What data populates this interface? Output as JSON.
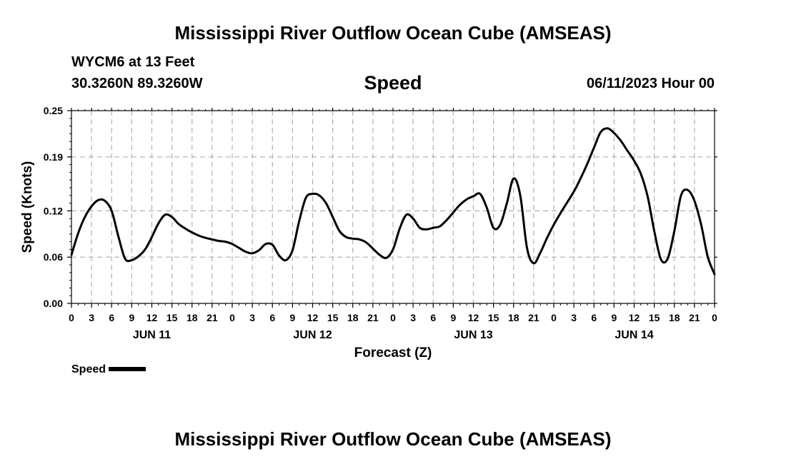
{
  "page_title": "Mississippi River Outflow Ocean Cube (AMSEAS)",
  "footer_title": "Mississippi River Outflow Ocean Cube (AMSEAS)",
  "station": "WYCM6 at 13 Feet",
  "coordinates": "30.3260N  89.3260W",
  "variable": "Speed",
  "date": "06/11/2023 Hour 00",
  "legend": {
    "label": "Speed",
    "color": "#000000"
  },
  "chart_data": {
    "type": "line",
    "title": "Speed",
    "xlabel": "Forecast (Z)",
    "ylabel": "Speed (Knots)",
    "xlim": [
      0,
      96
    ],
    "ylim": [
      0,
      0.25
    ],
    "y_ticks": [
      0.0,
      0.06,
      0.12,
      0.19,
      0.25
    ],
    "y_tick_labels": [
      "0.00",
      "0.06",
      "0.12",
      "0.19",
      "0.25"
    ],
    "x_ticks": [
      0,
      3,
      6,
      9,
      12,
      15,
      18,
      21,
      24,
      27,
      30,
      33,
      36,
      39,
      42,
      45,
      48,
      51,
      54,
      57,
      60,
      63,
      66,
      69,
      72,
      75,
      78,
      81,
      84,
      87,
      90,
      93,
      96
    ],
    "x_tick_labels": [
      "0",
      "3",
      "6",
      "9",
      "12",
      "15",
      "18",
      "21",
      "0",
      "3",
      "6",
      "9",
      "12",
      "15",
      "18",
      "21",
      "0",
      "3",
      "6",
      "9",
      "12",
      "15",
      "18",
      "21",
      "0",
      "3",
      "6",
      "9",
      "12",
      "15",
      "18",
      "21",
      "0"
    ],
    "day_labels": [
      {
        "label": "JUN 11",
        "x": 12
      },
      {
        "label": "JUN 12",
        "x": 36
      },
      {
        "label": "JUN 13",
        "x": 60
      },
      {
        "label": "JUN 14",
        "x": 84
      }
    ],
    "grid": true,
    "series": [
      {
        "name": "Speed",
        "color": "#000000",
        "x": [
          0,
          1,
          2,
          3,
          4,
          5,
          6,
          7,
          8,
          9,
          10,
          11,
          12,
          13,
          14,
          15,
          16,
          17,
          18,
          19,
          20,
          21,
          22,
          23,
          24,
          25,
          26,
          27,
          28,
          29,
          30,
          31,
          32,
          33,
          34,
          35,
          36,
          37,
          38,
          39,
          40,
          41,
          42,
          43,
          44,
          45,
          46,
          47,
          48,
          49,
          50,
          51,
          52,
          53,
          54,
          55,
          56,
          57,
          58,
          59,
          60,
          61,
          62,
          63,
          64,
          65,
          66,
          67,
          68,
          69,
          70,
          71,
          72,
          73,
          74,
          75,
          76,
          77,
          78,
          79,
          80,
          81,
          82,
          83,
          84,
          85,
          86,
          87,
          88,
          89,
          90,
          91,
          92,
          93,
          94,
          95,
          96
        ],
        "values": [
          0.063,
          0.091,
          0.112,
          0.126,
          0.134,
          0.133,
          0.12,
          0.087,
          0.058,
          0.056,
          0.061,
          0.07,
          0.086,
          0.104,
          0.115,
          0.112,
          0.103,
          0.097,
          0.092,
          0.088,
          0.085,
          0.083,
          0.081,
          0.08,
          0.077,
          0.072,
          0.067,
          0.065,
          0.069,
          0.077,
          0.076,
          0.062,
          0.056,
          0.069,
          0.107,
          0.137,
          0.142,
          0.14,
          0.13,
          0.112,
          0.094,
          0.086,
          0.084,
          0.083,
          0.079,
          0.071,
          0.063,
          0.059,
          0.07,
          0.097,
          0.115,
          0.11,
          0.098,
          0.096,
          0.098,
          0.1,
          0.108,
          0.118,
          0.128,
          0.135,
          0.139,
          0.142,
          0.124,
          0.098,
          0.102,
          0.13,
          0.162,
          0.14,
          0.072,
          0.052,
          0.066,
          0.085,
          0.102,
          0.117,
          0.131,
          0.145,
          0.162,
          0.181,
          0.202,
          0.222,
          0.227,
          0.221,
          0.211,
          0.198,
          0.185,
          0.168,
          0.139,
          0.094,
          0.057,
          0.058,
          0.094,
          0.14,
          0.147,
          0.133,
          0.102,
          0.06,
          0.038
        ]
      }
    ]
  }
}
